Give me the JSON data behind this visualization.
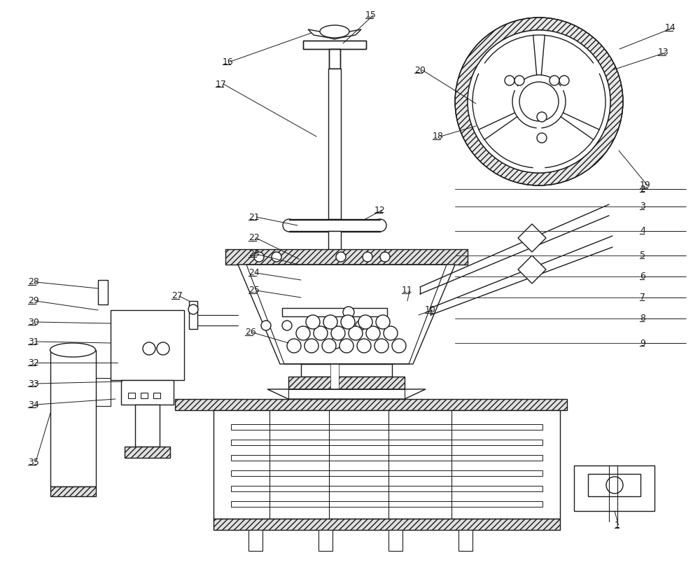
{
  "bg_color": "#ffffff",
  "line_color": "#1a1a1a",
  "lw": 1.0,
  "fig_w": 10.0,
  "fig_h": 8.3,
  "dpi": 100
}
